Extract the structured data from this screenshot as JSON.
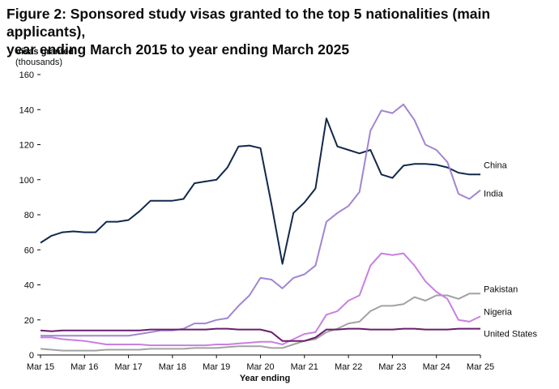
{
  "chart_data": {
    "type": "line",
    "title_line1": "Figure 2: Sponsored study visas granted to the top 5 nationalities (main applicants),",
    "title_line2": "year ending March 2015 to year ending March 2025",
    "ylabel_line1": "Visas granted",
    "ylabel_line2": "(thousands)",
    "xlabel": "Year ending",
    "ylim": [
      0,
      160
    ],
    "yticks": [
      0,
      20,
      40,
      60,
      80,
      100,
      120,
      140,
      160
    ],
    "x_tick_labels": [
      "Mar 15",
      "Mar 16",
      "Mar 17",
      "Mar 18",
      "Mar 19",
      "Mar 20",
      "Mar 21",
      "Mar 22",
      "Mar 23",
      "Mar 24",
      "Mar 25"
    ],
    "x_periods": "quarterly",
    "grid": false,
    "series": [
      {
        "name": "China",
        "color": "#12294b",
        "values": [
          64,
          68,
          70,
          70.5,
          70,
          70,
          76,
          76,
          77,
          82,
          88,
          88,
          88,
          89,
          98,
          99,
          100,
          107,
          119,
          119.5,
          118,
          86,
          52,
          81,
          87,
          95,
          135,
          119,
          117,
          115,
          117,
          103,
          101,
          108,
          109,
          109,
          108.5,
          107,
          104,
          103,
          103
        ]
      },
      {
        "name": "India",
        "color": "#a285d1",
        "values": [
          11,
          11,
          11,
          11,
          11,
          11,
          11,
          11,
          11,
          12,
          13,
          14,
          14,
          15,
          18,
          18,
          20,
          21,
          28,
          34,
          44,
          43,
          38,
          44,
          46,
          51,
          76,
          81,
          85,
          93,
          128,
          139.5,
          138,
          143,
          134,
          120,
          117,
          110,
          92,
          89,
          94
        ]
      },
      {
        "name": "Pakistan",
        "color": "#a2a2a2",
        "values": [
          3.5,
          3,
          2.5,
          2.5,
          2.5,
          2.5,
          3,
          3,
          3,
          3,
          3.5,
          3.5,
          3.5,
          3.5,
          4,
          4,
          4,
          4.5,
          5,
          5,
          5,
          4,
          4,
          6,
          8,
          9,
          13,
          15,
          18,
          19,
          25,
          28,
          28,
          29,
          33,
          31,
          34,
          34,
          32,
          35,
          35
        ]
      },
      {
        "name": "Nigeria",
        "color": "#c880e0",
        "values": [
          10,
          10,
          9,
          8.5,
          8,
          7,
          6,
          6,
          6,
          6,
          5.5,
          5.5,
          5.5,
          5.5,
          5.5,
          5.5,
          6,
          6,
          6.5,
          7,
          7.5,
          7.5,
          6,
          9,
          12,
          13,
          23,
          25,
          31,
          34,
          51,
          58,
          57,
          58,
          51,
          42,
          36,
          32,
          20,
          19,
          22
        ]
      },
      {
        "name": "United States",
        "color": "#6b1d6e",
        "values": [
          14,
          13.5,
          14,
          14,
          14,
          14,
          14,
          14,
          14,
          14,
          14.5,
          14.5,
          14.5,
          14.5,
          14.5,
          14.5,
          15,
          15,
          14.5,
          14.5,
          14.5,
          13,
          8,
          8,
          8,
          10,
          14.5,
          14.5,
          15,
          15,
          14.5,
          14.5,
          14.5,
          15,
          15,
          14.5,
          14.5,
          14.5,
          15,
          15,
          15
        ]
      }
    ]
  }
}
